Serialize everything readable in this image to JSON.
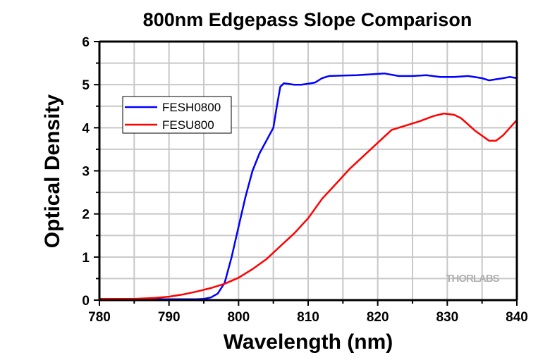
{
  "chart_data": {
    "type": "line",
    "title": "800nm Edgepass Slope Comparison",
    "xlabel": "Wavelength (nm)",
    "ylabel": "Optical Density",
    "xlim": [
      780,
      840
    ],
    "ylim": [
      0,
      6
    ],
    "xticks": [
      780,
      790,
      800,
      810,
      820,
      830,
      840
    ],
    "xtick_labels": [
      "780",
      "790",
      "800",
      "810",
      "820",
      "830",
      "840"
    ],
    "yticks": [
      0,
      1,
      2,
      3,
      4,
      5,
      6
    ],
    "ytick_labels": [
      "0",
      "1",
      "2",
      "3",
      "4",
      "5",
      "6"
    ],
    "x_minor_step": 5,
    "y_minor_step": 0.5,
    "grid": true,
    "legend_position": "upper-left",
    "watermark": "THORLABS",
    "series": [
      {
        "name": "FESH0800",
        "color": "#0000ff",
        "x": [
          780,
          785,
          790,
          794,
          795,
          796,
          797,
          798,
          799,
          800,
          801,
          802,
          803,
          804,
          805,
          805.5,
          806,
          806.5,
          807,
          808,
          809,
          810,
          811,
          812,
          813,
          815,
          817,
          819,
          821,
          823,
          825,
          827,
          829,
          831,
          833,
          835,
          836,
          838,
          839,
          840
        ],
        "y": [
          0.02,
          0.02,
          0.02,
          0.02,
          0.03,
          0.06,
          0.15,
          0.4,
          1.0,
          1.7,
          2.4,
          3.0,
          3.4,
          3.7,
          4.0,
          4.5,
          4.95,
          5.03,
          5.02,
          5.0,
          5.0,
          5.02,
          5.05,
          5.15,
          5.2,
          5.21,
          5.22,
          5.24,
          5.26,
          5.2,
          5.2,
          5.22,
          5.18,
          5.18,
          5.2,
          5.15,
          5.1,
          5.15,
          5.18,
          5.15
        ]
      },
      {
        "name": "FESU800",
        "color": "#ff0000",
        "x": [
          780,
          785,
          788,
          790,
          792,
          794,
          796,
          798,
          800,
          802,
          804,
          806,
          808,
          810,
          812,
          814,
          816,
          818,
          820,
          822,
          824,
          826,
          828,
          829.5,
          831,
          832,
          834,
          836,
          837,
          838,
          840
        ],
        "y": [
          0.03,
          0.03,
          0.05,
          0.08,
          0.13,
          0.2,
          0.28,
          0.38,
          0.52,
          0.72,
          0.95,
          1.25,
          1.55,
          1.9,
          2.35,
          2.7,
          3.05,
          3.35,
          3.65,
          3.95,
          4.05,
          4.15,
          4.27,
          4.33,
          4.3,
          4.22,
          3.93,
          3.7,
          3.7,
          3.82,
          4.18
        ]
      }
    ]
  }
}
